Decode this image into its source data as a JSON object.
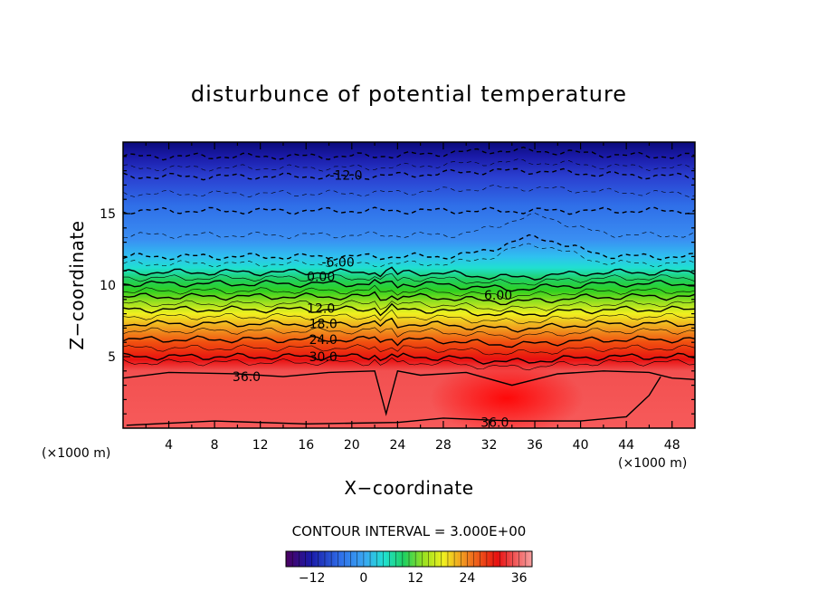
{
  "chart_data": {
    "type": "heatmap",
    "title": "disturbunce of potential temperature",
    "xlabel": "X−coordinate",
    "ylabel": "Z−coordinate",
    "x_unit_left": "(×1000 m)",
    "x_unit_right": "(×1000 m)",
    "xlim": [
      0,
      50
    ],
    "ylim": [
      0,
      20
    ],
    "x_ticks": [
      4,
      8,
      12,
      16,
      20,
      24,
      28,
      32,
      36,
      40,
      44,
      48
    ],
    "y_ticks": [
      5,
      10,
      15
    ],
    "contour_interval_text": "CONTOUR INTERVAL = 3.000E+00",
    "contour_labels": [
      {
        "text": "-12.0",
        "x": 19.5,
        "y": 17.7
      },
      {
        "text": "-6.00",
        "x": 18.8,
        "y": 11.6
      },
      {
        "text": "0.00",
        "x": 17.3,
        "y": 10.6
      },
      {
        "text": "6.00",
        "x": 32.8,
        "y": 9.3
      },
      {
        "text": "12.0",
        "x": 17.3,
        "y": 8.4
      },
      {
        "text": "18.0",
        "x": 17.5,
        "y": 7.3
      },
      {
        "text": "24.0",
        "x": 17.5,
        "y": 6.2
      },
      {
        "text": "30.0",
        "x": 17.5,
        "y": 5.0
      },
      {
        "text": "36.0",
        "x": 10.8,
        "y": 3.6
      },
      {
        "text": "36.0",
        "x": 32.5,
        "y": 0.4
      }
    ],
    "colorbar": {
      "range": [
        -18,
        39
      ],
      "ticks": [
        -12,
        0,
        12,
        24,
        36
      ],
      "tick_labels": [
        "−12",
        "0",
        "12",
        "24",
        "36"
      ]
    }
  }
}
